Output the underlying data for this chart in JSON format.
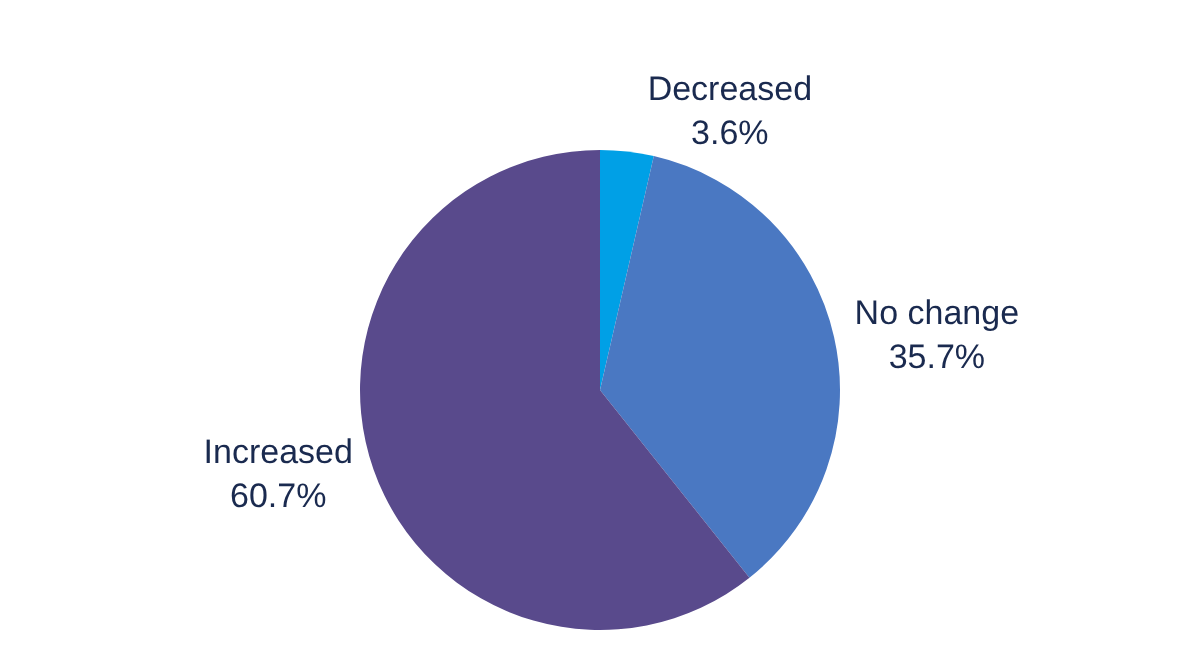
{
  "chart_data": {
    "type": "pie",
    "categories": [
      "Decreased",
      "No change",
      "Increased"
    ],
    "values": [
      3.6,
      35.7,
      60.7
    ],
    "value_labels": [
      "3.6%",
      "35.7%",
      "60.7%"
    ],
    "colors": [
      "#00a0e6",
      "#4a78c2",
      "#594a8c"
    ],
    "legend": false
  }
}
